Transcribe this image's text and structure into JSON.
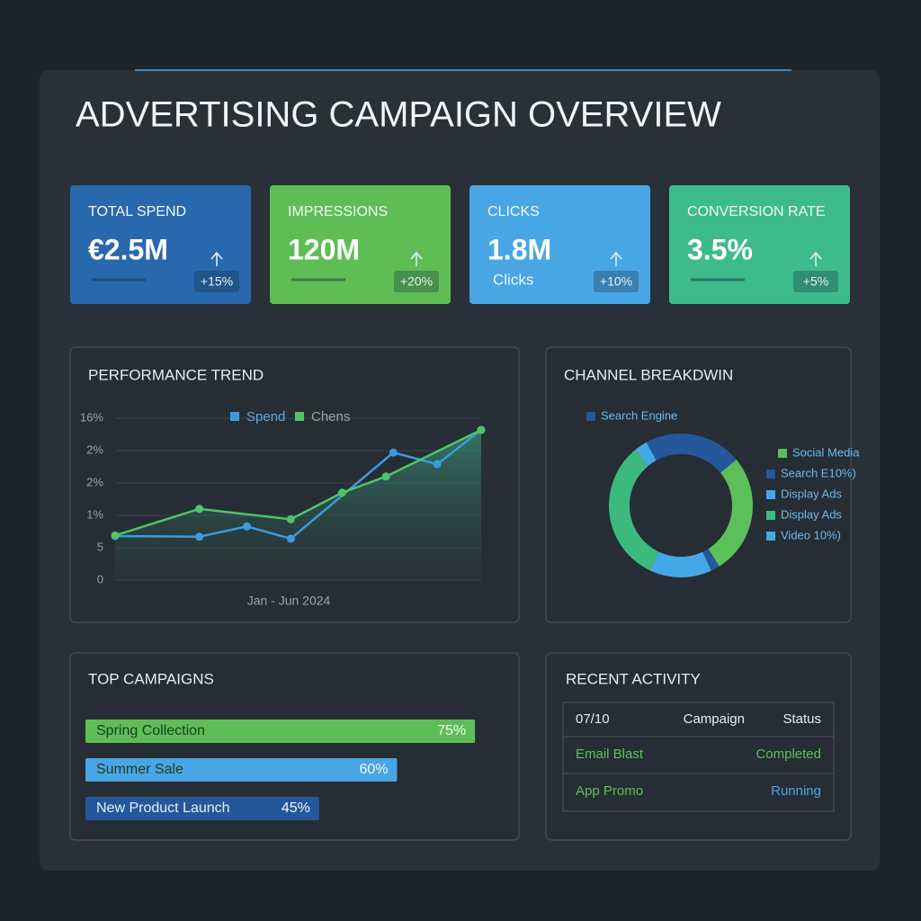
{
  "header": {
    "title": "ADVERTISING CAMPAIGN OVERVIEW"
  },
  "kpis": [
    {
      "label": "TOTAL SPEND",
      "value": "€2.5M",
      "change": "+15%",
      "color": "#2a68ad"
    },
    {
      "label": "IMPRESSIONS",
      "value": "120M",
      "change": "+20%",
      "color": "#5fbd55"
    },
    {
      "label": "CLICKS",
      "value": "1.8M",
      "sub": "Clicks",
      "change": "+10%",
      "color": "#48a6e4"
    },
    {
      "label": "CONVERSION RATE",
      "value": "3.5%",
      "change": "+5%",
      "color": "#3dbb8c"
    }
  ],
  "performance_trend": {
    "type": "line",
    "title": "PERFORMANCE TREND",
    "x_label": "Jan - Jun 2024",
    "xlim": [
      0,
      10
    ],
    "ylim": [
      0,
      25
    ],
    "yticks": [
      0,
      5,
      {
        "value": 10,
        "label": "1%"
      },
      {
        "value": 15,
        "label": "2%"
      },
      {
        "value": 20,
        "label": "2%"
      },
      {
        "value": 25,
        "label": "16%"
      }
    ],
    "grid": true,
    "series": [
      {
        "name": "Spend",
        "color": "#3b9be0",
        "x": [
          0,
          2.3,
          3.6,
          4.8,
          7.6,
          8.8,
          10
        ],
        "values": [
          6.8,
          6.7,
          8.3,
          6.4,
          19.7,
          17.9,
          23.2
        ]
      },
      {
        "name": "Chens",
        "color": "#4fc46a",
        "x": [
          0,
          2.3,
          4.8,
          6.2,
          7.4,
          10
        ],
        "values": [
          6.9,
          11,
          9.4,
          13.5,
          16,
          23.2
        ]
      }
    ]
  },
  "channel_breakdown": {
    "type": "pie",
    "title": "CHANNEL BREAKDWIN",
    "categories": [
      "Search Engine",
      "Social Media",
      "Search E10%)",
      "Display Ads",
      "Display Ads",
      "Video 10%)"
    ],
    "values": [
      22,
      27,
      2,
      14,
      32,
      3
    ],
    "colors": [
      "#24589a",
      "#5cc05a",
      "#24589a",
      "#44a8e6",
      "#3cba7e",
      "#44a8e6"
    ]
  },
  "top_campaigns": {
    "type": "bar",
    "title": "TOP CAMPAIGNS",
    "categories": [
      "Spring Collection",
      "Summer Sale",
      "New Product Launch"
    ],
    "values": [
      75,
      60,
      45
    ],
    "value_labels": [
      "75%",
      "60%",
      "45%"
    ],
    "colors": [
      "#5fbd55",
      "#48a6e4",
      "#24589a"
    ],
    "xlim": [
      0,
      80
    ]
  },
  "recent_activity": {
    "title": "RECENT ACTIVITY",
    "table": {
      "header": [
        "07/10",
        "Campaign",
        "Status"
      ],
      "rows": [
        [
          "Email Blast",
          "Completed"
        ],
        [
          "App Promo",
          "Running"
        ]
      ]
    }
  }
}
